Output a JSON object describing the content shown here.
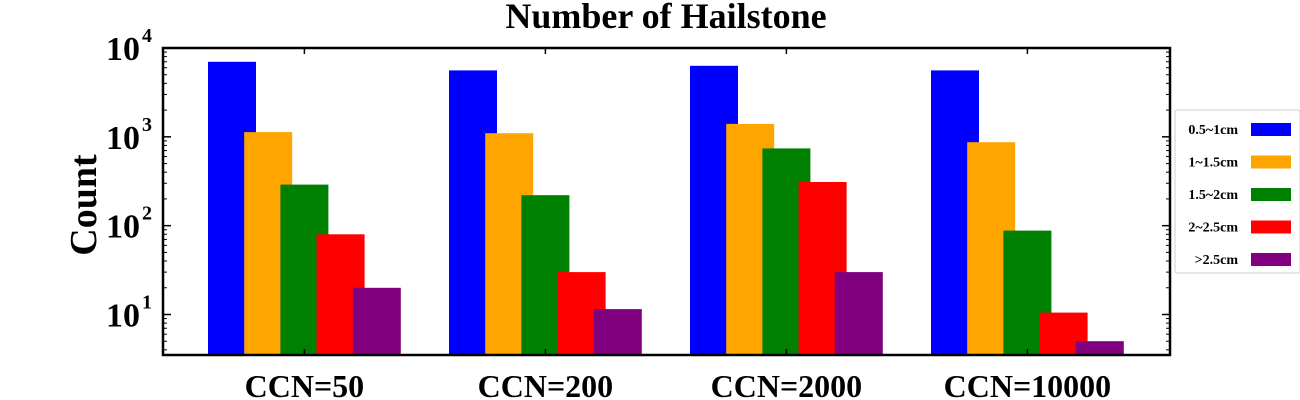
{
  "chart_data": {
    "type": "bar",
    "title": "Number of Hailstone",
    "xlabel": "",
    "ylabel": "Count",
    "yscale": "log",
    "ylim": [
      3.5,
      10000
    ],
    "categories": [
      "CCN=50",
      "CCN=200",
      "CCN=2000",
      "CCN=10000"
    ],
    "y_ticks": [
      {
        "value": 10,
        "base": "10",
        "exp": "1"
      },
      {
        "value": 100,
        "base": "10",
        "exp": "2"
      },
      {
        "value": 1000,
        "base": "10",
        "exp": "3"
      },
      {
        "value": 10000,
        "base": "10",
        "exp": "4"
      }
    ],
    "series": [
      {
        "name": "0.5~1cm",
        "color": "#0000ff",
        "values": [
          7000,
          5600,
          6300,
          5600
        ]
      },
      {
        "name": "1~1.5cm",
        "color": "#ffa500",
        "values": [
          1130,
          1100,
          1400,
          870
        ]
      },
      {
        "name": "1.5~2cm",
        "color": "#008000",
        "values": [
          290,
          220,
          740,
          88
        ]
      },
      {
        "name": "2~2.5cm",
        "color": "#ff0000",
        "values": [
          80,
          30,
          310,
          10.5
        ]
      },
      {
        "name": ">2.5cm",
        "color": "#800080",
        "values": [
          20,
          11.5,
          30,
          5
        ]
      }
    ],
    "grid": false,
    "legend": "right, outside"
  }
}
